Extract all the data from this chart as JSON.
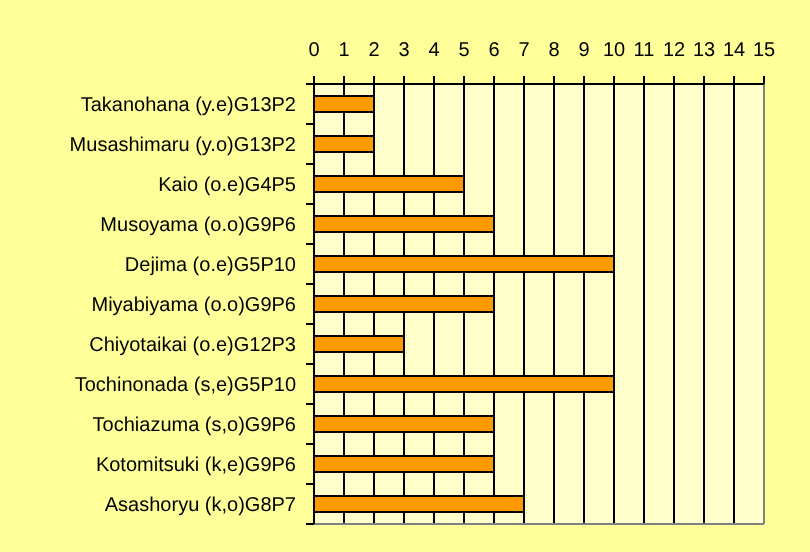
{
  "chart_data": {
    "type": "bar",
    "orientation": "horizontal",
    "categories": [
      "Takanohana (y.e)G13P2",
      "Musashimaru (y.o)G13P2",
      "Kaio (o.e)G4P5",
      "Musoyama (o.o)G9P6",
      "Dejima (o.e)G5P10",
      "Miyabiyama (o.o)G9P6",
      "Chiyotaikai (o.e)G12P3",
      "Tochinonada (s,e)G5P10",
      "Tochiazuma (s,o)G9P6",
      "Kotomitsuki (k,e)G9P6",
      "Asashoryu (k,o)G8P7"
    ],
    "values": [
      2,
      2,
      5,
      6,
      10,
      6,
      3,
      10,
      6,
      6,
      7
    ],
    "color": "#ff9900",
    "xlim": [
      0,
      15
    ],
    "xticks": [
      0,
      1,
      2,
      3,
      4,
      5,
      6,
      7,
      8,
      9,
      10,
      11,
      12,
      13,
      14,
      15
    ],
    "grid": "x"
  }
}
